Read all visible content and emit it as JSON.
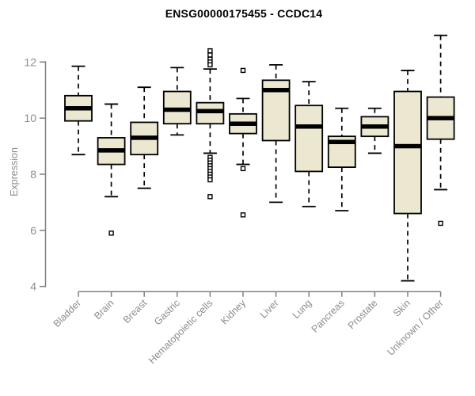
{
  "chart_data": {
    "type": "boxplot",
    "title": "ENSG00000175455 - CCDC14",
    "xlabel": "",
    "ylabel": "Expression",
    "yticks": [
      4,
      6,
      8,
      10,
      12
    ],
    "ylim": [
      3.7,
      13.2
    ],
    "grid": false,
    "legend": "none",
    "categories": [
      "Bladder",
      "Brain",
      "Breast",
      "Gastric",
      "Hematopoietic cells",
      "Kidney",
      "Liver",
      "Lung",
      "Pancreas",
      "Prostate",
      "Skin",
      "Unknown / Other"
    ],
    "series": [
      {
        "category": "Bladder",
        "whisker_low": 8.7,
        "q1": 9.9,
        "median": 10.35,
        "q3": 10.8,
        "whisker_high": 11.85,
        "outliers": []
      },
      {
        "category": "Brain",
        "whisker_low": 7.2,
        "q1": 8.35,
        "median": 8.85,
        "q3": 9.3,
        "whisker_high": 10.5,
        "outliers": [
          5.9
        ]
      },
      {
        "category": "Breast",
        "whisker_low": 7.5,
        "q1": 8.7,
        "median": 9.3,
        "q3": 9.85,
        "whisker_high": 11.1,
        "outliers": []
      },
      {
        "category": "Gastric",
        "whisker_low": 9.4,
        "q1": 9.8,
        "median": 10.3,
        "q3": 10.95,
        "whisker_high": 11.8,
        "outliers": []
      },
      {
        "category": "Hematopoietic cells",
        "whisker_low": 8.75,
        "q1": 9.8,
        "median": 10.25,
        "q3": 10.55,
        "whisker_high": 11.75,
        "outliers": [
          12.4,
          12.25,
          12.1,
          12.0,
          11.9,
          8.6,
          8.5,
          8.4,
          8.3,
          8.2,
          8.1,
          8.0,
          7.9,
          7.8,
          7.2
        ]
      },
      {
        "category": "Kidney",
        "whisker_low": 8.35,
        "q1": 9.45,
        "median": 9.8,
        "q3": 10.15,
        "whisker_high": 10.7,
        "outliers": [
          11.7,
          8.2,
          6.55
        ]
      },
      {
        "category": "Liver",
        "whisker_low": 7.0,
        "q1": 9.2,
        "median": 11.0,
        "q3": 11.35,
        "whisker_high": 11.9,
        "outliers": []
      },
      {
        "category": "Lung",
        "whisker_low": 6.85,
        "q1": 8.1,
        "median": 9.7,
        "q3": 10.45,
        "whisker_high": 11.3,
        "outliers": []
      },
      {
        "category": "Pancreas",
        "whisker_low": 6.7,
        "q1": 8.25,
        "median": 9.15,
        "q3": 9.35,
        "whisker_high": 10.35,
        "outliers": []
      },
      {
        "category": "Prostate",
        "whisker_low": 8.75,
        "q1": 9.35,
        "median": 9.7,
        "q3": 10.05,
        "whisker_high": 10.35,
        "outliers": []
      },
      {
        "category": "Skin",
        "whisker_low": 4.2,
        "q1": 6.6,
        "median": 9.0,
        "q3": 10.95,
        "whisker_high": 11.7,
        "outliers": []
      },
      {
        "category": "Unknown / Other",
        "whisker_low": 7.45,
        "q1": 9.25,
        "median": 10.0,
        "q3": 10.75,
        "whisker_high": 12.95,
        "outliers": [
          6.25
        ]
      }
    ],
    "colors": {
      "box_fill": "#ece7d0",
      "box_stroke": "#000000",
      "median": "#000000",
      "axis": "#808080",
      "tick_label": "#8c8c8c",
      "title": "#000000",
      "background": "#ffffff"
    }
  }
}
